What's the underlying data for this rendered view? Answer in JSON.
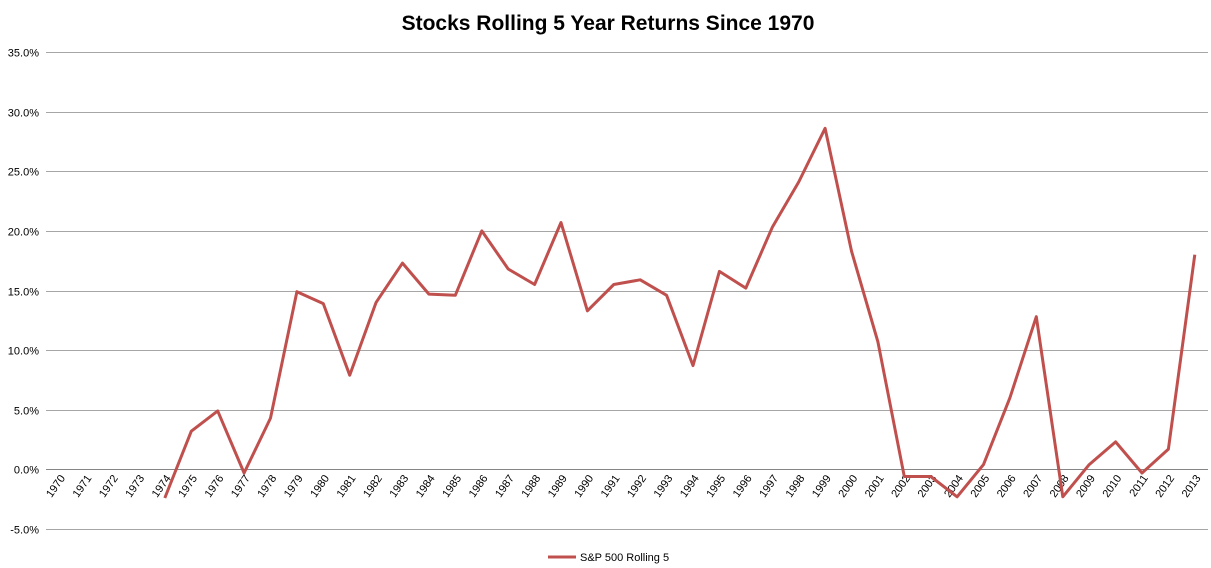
{
  "chart_data": {
    "type": "line",
    "title": "Stocks Rolling 5 Year Returns Since 1970",
    "xlabel": "",
    "ylabel": "",
    "ylim": [
      -5.0,
      35.0
    ],
    "yticks": [
      "-5.0%",
      "0.0%",
      "5.0%",
      "10.0%",
      "15.0%",
      "20.0%",
      "25.0%",
      "30.0%",
      "35.0%"
    ],
    "grid": true,
    "legend_position": "bottom",
    "categories": [
      "1970",
      "1971",
      "1972",
      "1973",
      "1974",
      "1975",
      "1976",
      "1977",
      "1978",
      "1979",
      "1980",
      "1981",
      "1982",
      "1983",
      "1984",
      "1985",
      "1986",
      "1987",
      "1988",
      "1989",
      "1990",
      "1991",
      "1992",
      "1993",
      "1994",
      "1995",
      "1996",
      "1997",
      "1998",
      "1999",
      "2000",
      "2001",
      "2002",
      "2003",
      "2004",
      "2005",
      "2006",
      "2007",
      "2008",
      "2009",
      "2010",
      "2011",
      "2012",
      "2013"
    ],
    "series": [
      {
        "name": "S&P 500 Rolling 5",
        "color": "#c0504d",
        "values": [
          null,
          null,
          null,
          null,
          -2.4,
          3.2,
          4.9,
          -0.3,
          4.3,
          14.9,
          13.9,
          7.9,
          14.0,
          17.3,
          14.7,
          14.6,
          20.0,
          16.8,
          15.5,
          20.7,
          13.3,
          15.5,
          15.9,
          14.6,
          8.7,
          16.6,
          15.2,
          20.3,
          24.1,
          28.6,
          18.3,
          10.7,
          -0.6,
          -0.6,
          -2.3,
          0.4,
          6.0,
          12.8,
          -2.3,
          0.4,
          2.3,
          -0.3,
          1.7,
          18.0
        ]
      }
    ]
  }
}
